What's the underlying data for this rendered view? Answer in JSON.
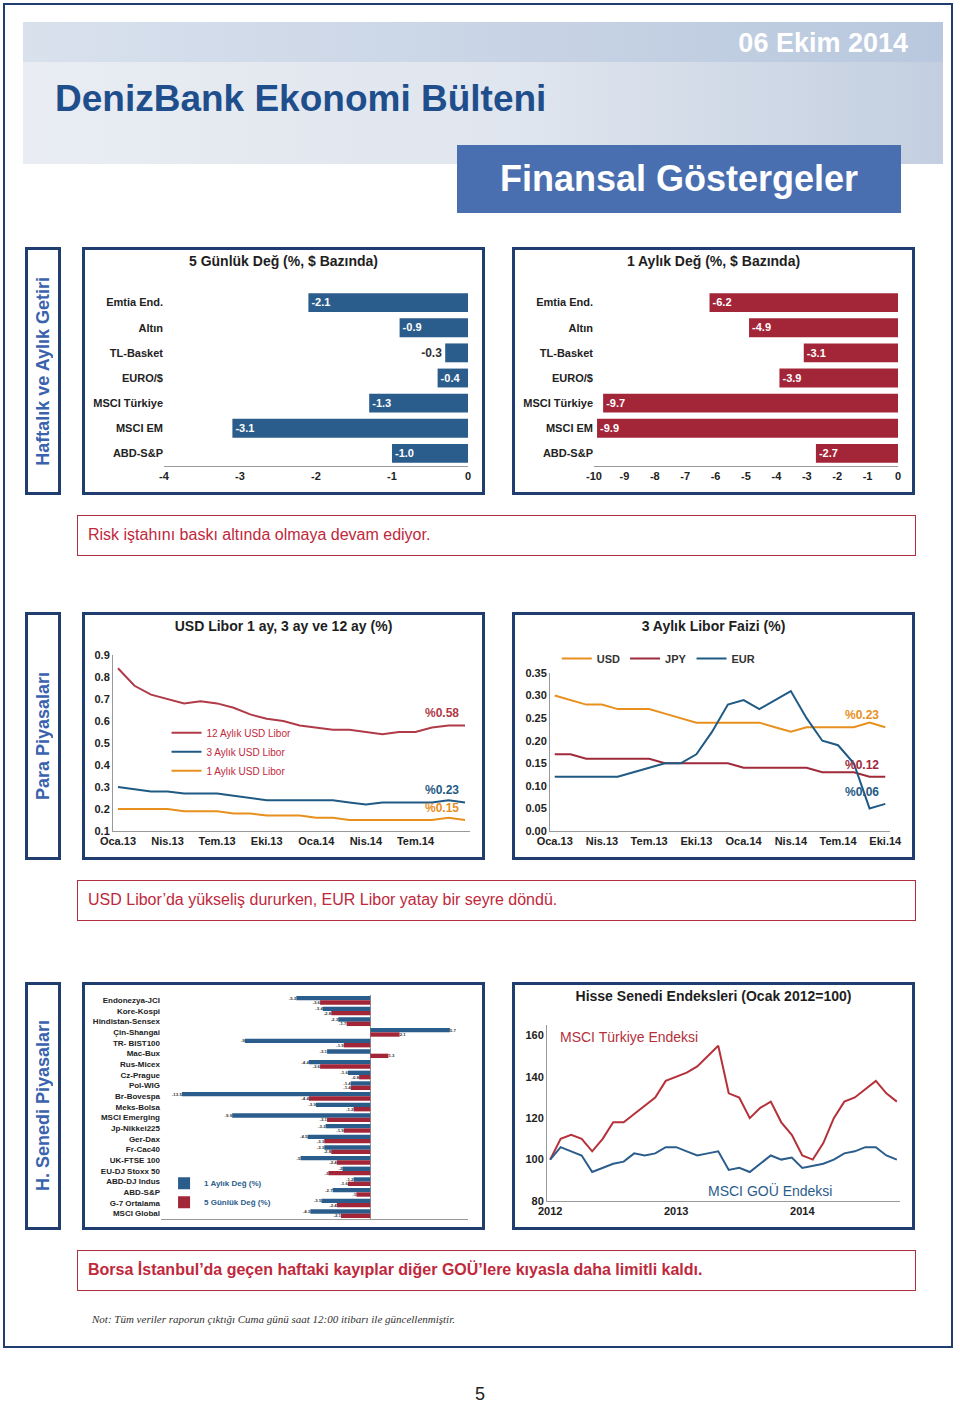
{
  "page": {
    "date": "06 Ekim 2014",
    "title": "DenizBank Ekonomi Bülteni",
    "subtitle": "Finansal Göstergeler",
    "sections": [
      {
        "label": "Haftalık ve Aylık Getiri",
        "caption": "Risk iştahını baskı altında olmaya devam ediyor."
      },
      {
        "label": "Para Piyasaları",
        "caption": "USD Libor’da yükseliş dururken, EUR Libor yatay bir seyre döndü."
      },
      {
        "label": "H. Senedi Piyasaları",
        "caption": "Borsa İstanbul’da geçen haftaki kayıplar diğer GOÜ’lere kıyasla daha limitli kaldı."
      }
    ],
    "note": "Not: Tüm veriler raporun çıktığı Cuma günü saat 12:00 itibarı ile güncellenmiştir.",
    "page_number": 5
  },
  "chart_data": [
    {
      "type": "bar",
      "orientation": "horizontal",
      "title": "5 Günlük Değ (%, $ Bazında)",
      "categories": [
        "Emtia End.",
        "Altın",
        "TL-Basket",
        "EURO/$",
        "MSCI Türkiye",
        "MSCI EM",
        "ABD-S&P"
      ],
      "values": [
        -2.1,
        -0.9,
        -0.3,
        -0.4,
        -1.3,
        -3.1,
        -1.0
      ],
      "value_labels": [
        "-2.1",
        "-0.9",
        "-0.3",
        "-0.4",
        "-1.3",
        "-3.1",
        "-1.0"
      ],
      "color": "#2b5d8c",
      "xlim": [
        -4,
        0
      ],
      "xticks": [
        -4,
        -3,
        -2,
        -1,
        0
      ],
      "grid": false,
      "data_labels": true
    },
    {
      "type": "bar",
      "orientation": "horizontal",
      "title": "1 Aylık Değ (%, $ Bazında)",
      "categories": [
        "Emtia End.",
        "Altın",
        "TL-Basket",
        "EURO/$",
        "MSCI Türkiye",
        "MSCI EM",
        "ABD-S&P"
      ],
      "values": [
        -6.2,
        -4.9,
        -3.1,
        -3.9,
        -9.7,
        -9.9,
        -2.7
      ],
      "color": "#a32638",
      "xlim": [
        -10,
        0
      ],
      "xticks": [
        -10,
        -9,
        -8,
        -7,
        -6,
        -5,
        -4,
        -3,
        -2,
        -1,
        0
      ],
      "grid": false,
      "data_labels": true
    },
    {
      "type": "line",
      "title": "USD Libor 1 ay, 3 ay ve 12 ay (%)",
      "categories": [
        "Oca.13",
        null,
        null,
        "Nis.13",
        null,
        null,
        "Tem.13",
        null,
        null,
        "Eki.13",
        null,
        null,
        "Oca.14",
        null,
        null,
        "Nis.14",
        null,
        null,
        "Tem.14",
        null,
        null,
        null
      ],
      "series": [
        {
          "name": "12 Aylık USD Libor",
          "color": "#b03a48",
          "end_label": "%0.58",
          "values": [
            0.84,
            0.76,
            0.72,
            0.7,
            0.68,
            0.69,
            0.68,
            0.66,
            0.63,
            0.61,
            0.6,
            0.58,
            0.57,
            0.56,
            0.56,
            0.55,
            0.54,
            0.55,
            0.55,
            0.57,
            0.58,
            0.58
          ]
        },
        {
          "name": "3 Aylık USD Libor",
          "color": "#1f5a85",
          "end_label": "%0.23",
          "values": [
            0.3,
            0.29,
            0.28,
            0.28,
            0.27,
            0.27,
            0.27,
            0.26,
            0.25,
            0.24,
            0.24,
            0.24,
            0.24,
            0.24,
            0.23,
            0.22,
            0.23,
            0.23,
            0.23,
            0.23,
            0.24,
            0.23
          ]
        },
        {
          "name": "1 Aylık USD Libor",
          "color": "#e8901e",
          "end_label": "%0.15",
          "values": [
            0.2,
            0.2,
            0.2,
            0.2,
            0.19,
            0.19,
            0.19,
            0.18,
            0.18,
            0.17,
            0.17,
            0.17,
            0.16,
            0.16,
            0.15,
            0.15,
            0.15,
            0.15,
            0.15,
            0.15,
            0.16,
            0.15
          ]
        }
      ],
      "ylim": [
        0.1,
        0.9
      ],
      "yticks": [
        0.1,
        0.2,
        0.3,
        0.4,
        0.5,
        0.6,
        0.7,
        0.8,
        0.9
      ],
      "grid": false,
      "legend": "left"
    },
    {
      "type": "line",
      "title": "3 Aylık Libor Faizi (%)",
      "categories": [
        "Oca.13",
        null,
        null,
        "Nis.13",
        null,
        null,
        "Tem.13",
        null,
        null,
        "Eki.13",
        null,
        null,
        "Oca.14",
        null,
        null,
        "Nis.14",
        null,
        null,
        "Tem.14",
        null,
        null,
        "Eki.14"
      ],
      "series": [
        {
          "name": "USD",
          "color": "#e8901e",
          "end_label": "%0.23",
          "values": [
            0.3,
            0.29,
            0.28,
            0.28,
            0.27,
            0.27,
            0.27,
            0.26,
            0.25,
            0.24,
            0.24,
            0.24,
            0.24,
            0.24,
            0.23,
            0.22,
            0.23,
            0.23,
            0.23,
            0.23,
            0.24,
            0.23
          ]
        },
        {
          "name": "JPY",
          "color": "#9e2a3a",
          "end_label": "%0.12",
          "values": [
            0.17,
            0.17,
            0.16,
            0.16,
            0.16,
            0.16,
            0.16,
            0.15,
            0.15,
            0.15,
            0.15,
            0.15,
            0.14,
            0.14,
            0.14,
            0.14,
            0.14,
            0.13,
            0.13,
            0.13,
            0.12,
            0.12
          ]
        },
        {
          "name": "EUR",
          "color": "#1f5a85",
          "end_label": "%0.06",
          "values": [
            0.12,
            0.12,
            0.12,
            0.12,
            0.12,
            0.13,
            0.14,
            0.15,
            0.15,
            0.17,
            0.22,
            0.28,
            0.29,
            0.27,
            0.29,
            0.31,
            0.25,
            0.2,
            0.19,
            0.15,
            0.05,
            0.06
          ]
        }
      ],
      "ylim": [
        0,
        0.35
      ],
      "yticks": [
        {
          "value": 0,
          "label": "0.00"
        },
        {
          "value": 0.05,
          "label": "0.05"
        },
        {
          "value": 0.1,
          "label": "0.10"
        },
        {
          "value": 0.15,
          "label": "0.15"
        },
        {
          "value": 0.2,
          "label": "0.20"
        },
        {
          "value": 0.25,
          "label": "0.25"
        },
        {
          "value": 0.3,
          "label": "0.30"
        },
        {
          "value": 0.35,
          "label": "0.35"
        }
      ],
      "grid": false,
      "legend": "top"
    },
    {
      "type": "bar",
      "orientation": "horizontal",
      "categories": [
        "Endonezya-JCI",
        "Kore-Kospi",
        "Hindistan-Sensex",
        "Çin-Shangai",
        "TR- BIST100",
        "Mac-Bux",
        "Rus-Micex",
        "Cz-Prague",
        "Pol-WIG",
        "Br-Bovespa",
        "Meks-Bolsa",
        "MSCI Emerging",
        "Jp-Nikkei225",
        "Ger-Dax",
        "Fr-Cac40",
        "UK-FTSE 100",
        "EU-DJ Stoxx 50",
        "ABD-DJ Indus",
        "ABD-S&P",
        "G-7 Ortalama",
        "MSCI Global"
      ],
      "series": [
        {
          "name": "1 Aylık Değ (%)",
          "color": "#2b5d8c",
          "values": [
            -5.3,
            -3.4,
            -2.3,
            5.7,
            -9.0,
            -3.1,
            -4.4,
            -1.6,
            -1.4,
            -13.5,
            -3.9,
            -9.9,
            -3.2,
            -4.5,
            -3.3,
            -5.0,
            -2.0,
            -1.2,
            -2.7,
            -3.5,
            -4.3
          ]
        },
        {
          "name": "5 Günlük Değ (%)",
          "color": "#a32638",
          "values": [
            -3.6,
            -2.8,
            -1.7,
            2.1,
            -1.9,
            1.3,
            -3.6,
            -0.8,
            -1.4,
            -4.4,
            -1.2,
            -3.1,
            -1.9,
            -3.3,
            -2.8,
            -2.4,
            -3.0,
            -1.6,
            -1.0,
            -2.4,
            -2.1
          ]
        }
      ],
      "xlim": [
        -15,
        7
      ],
      "tick_labels": "y",
      "grid": false,
      "data_labels": true,
      "legend": "bottom left"
    },
    {
      "type": "line",
      "title": "Hisse Senedi Endeksleri (Ocak 2012=100)",
      "categories": [
        "2012",
        null,
        null,
        null,
        null,
        null,
        null,
        null,
        null,
        null,
        null,
        null,
        "2013",
        null,
        null,
        null,
        null,
        null,
        null,
        null,
        null,
        null,
        null,
        null,
        "2014",
        null,
        null,
        null,
        null,
        null,
        null,
        null,
        null,
        null
      ],
      "series": [
        {
          "name": "MSCI Türkiye Endeksi",
          "color": "#b5313a",
          "values": [
            100,
            110,
            112,
            110,
            104,
            110,
            118,
            118,
            122,
            126,
            130,
            138,
            140,
            142,
            145,
            150,
            155,
            132,
            130,
            120,
            125,
            128,
            118,
            112,
            102,
            100,
            108,
            120,
            128,
            130,
            134,
            138,
            132,
            128
          ]
        },
        {
          "name": "MSCI GOÜ Endeksi",
          "color": "#2b5d8c",
          "values": [
            100,
            106,
            104,
            102,
            94,
            96,
            98,
            99,
            103,
            102,
            103,
            106,
            106,
            104,
            102,
            103,
            104,
            95,
            96,
            94,
            98,
            102,
            100,
            101,
            96,
            97,
            98,
            100,
            103,
            104,
            106,
            106,
            102,
            100
          ]
        }
      ],
      "ylim": [
        80,
        165
      ],
      "yticks": [
        80,
        100,
        120,
        140,
        160
      ],
      "grid": false,
      "legend": "inline"
    }
  ]
}
